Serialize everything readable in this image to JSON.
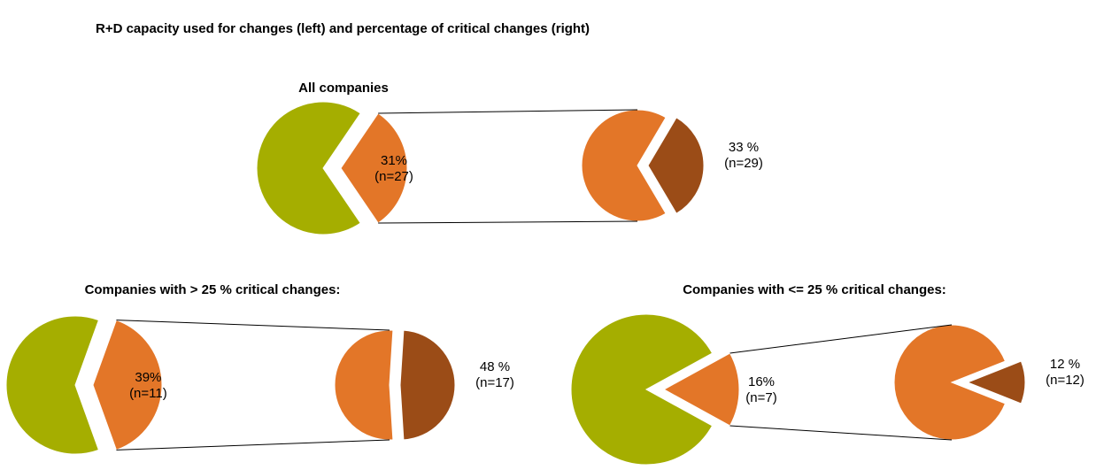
{
  "title": "R+D capacity used for changes (left)  and percentage of critical changes (right)",
  "chart_data": [
    {
      "type": "pie-of-pie",
      "title": "All companies",
      "pies": [
        {
          "values": [
            69,
            31
          ],
          "value_labels": [
            null,
            "31%"
          ],
          "n_labels": [
            null,
            "(n=27)"
          ],
          "colors": [
            "#a5ae00",
            "#e37628"
          ]
        },
        {
          "values": [
            67,
            33
          ],
          "value_labels": [
            null,
            "33 %"
          ],
          "n_labels": [
            null,
            "(n=29)"
          ],
          "colors": [
            "#e37628",
            "#9b4c17"
          ]
        }
      ]
    },
    {
      "type": "pie-of-pie",
      "title": "Companies with > 25 % critical changes:",
      "pies": [
        {
          "values": [
            61,
            39
          ],
          "value_labels": [
            null,
            "39%"
          ],
          "n_labels": [
            null,
            "(n=11)"
          ],
          "colors": [
            "#a5ae00",
            "#e37628"
          ]
        },
        {
          "values": [
            52,
            48
          ],
          "value_labels": [
            null,
            "48 %"
          ],
          "n_labels": [
            null,
            "(n=17)"
          ],
          "colors": [
            "#e37628",
            "#9b4c17"
          ]
        }
      ]
    },
    {
      "type": "pie-of-pie",
      "title": "Companies with <= 25 % critical changes:",
      "pies": [
        {
          "values": [
            84,
            16
          ],
          "value_labels": [
            null,
            "16%"
          ],
          "n_labels": [
            null,
            "(n=7)"
          ],
          "colors": [
            "#a5ae00",
            "#e37628"
          ]
        },
        {
          "values": [
            88,
            12
          ],
          "value_labels": [
            null,
            "12 %"
          ],
          "n_labels": [
            null,
            "(n=12)"
          ],
          "colors": [
            "#e37628",
            "#9b4c17"
          ]
        }
      ]
    }
  ]
}
